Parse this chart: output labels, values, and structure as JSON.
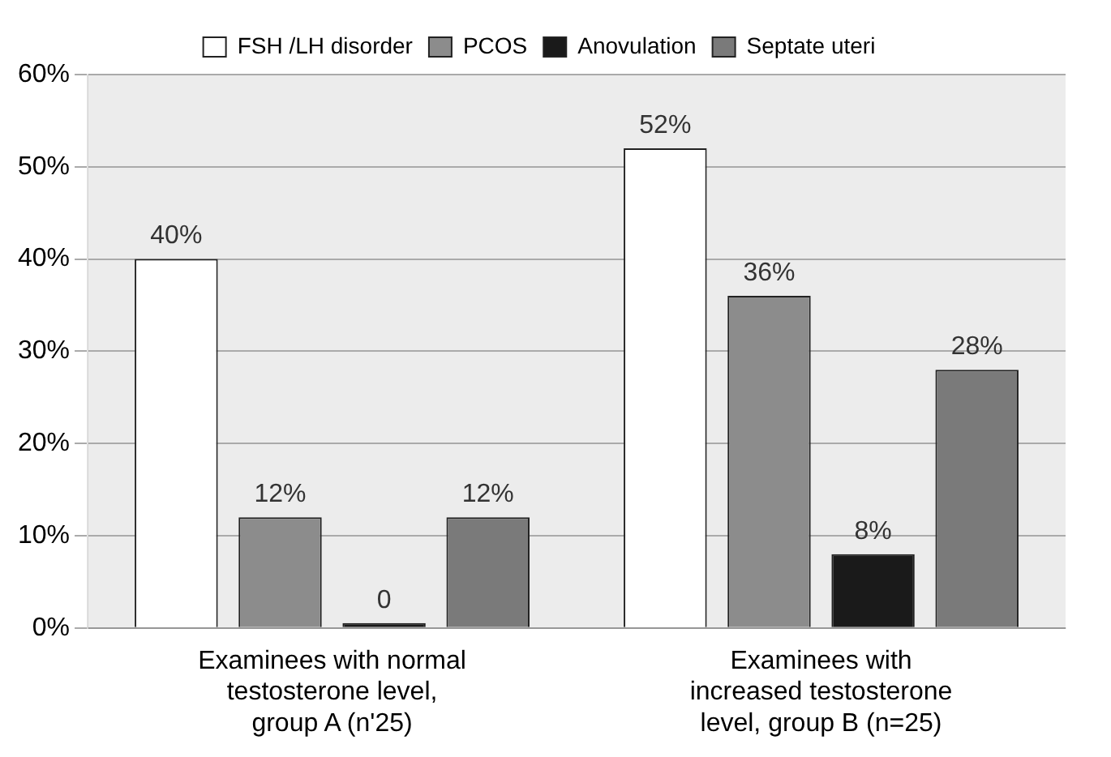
{
  "chart_data": {
    "type": "bar",
    "categories": [
      "Examinees with normal testosterone level, group A (n'25)",
      "Examinees with increased testosterone level, group B (n=25)"
    ],
    "series": [
      {
        "name": "FSH /LH disorder",
        "color": "#ffffff",
        "values": [
          40,
          52
        ],
        "value_labels": [
          "40%",
          "52%"
        ]
      },
      {
        "name": "PCOS",
        "color": "#8c8c8c",
        "values": [
          12,
          36
        ],
        "value_labels": [
          "12%",
          "36%"
        ]
      },
      {
        "name": "Anovulation",
        "color": "#1a1a1a",
        "values": [
          0,
          8
        ],
        "value_labels": [
          "0",
          "8%"
        ]
      },
      {
        "name": "Septate uteri",
        "color": "#7a7a7a",
        "values": [
          12,
          28
        ],
        "value_labels": [
          "12%",
          "28%"
        ]
      }
    ],
    "ylim": [
      0,
      60
    ],
    "yticks": [
      {
        "value": 0,
        "label": "0%"
      },
      {
        "value": 10,
        "label": "10%"
      },
      {
        "value": 20,
        "label": "20%"
      },
      {
        "value": 30,
        "label": "30%"
      },
      {
        "value": 40,
        "label": "40%"
      },
      {
        "value": 50,
        "label": "50%"
      },
      {
        "value": 60,
        "label": "60%"
      }
    ],
    "grid": "y",
    "legend": "top"
  }
}
